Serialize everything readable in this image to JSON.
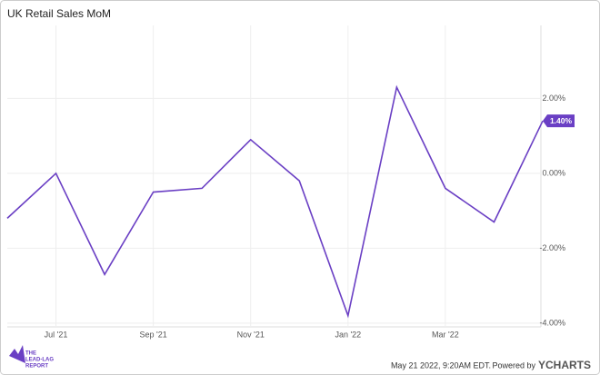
{
  "chart_data": {
    "type": "line",
    "title": "UK Retail Sales MoM",
    "categories": [
      null,
      "Jul '21",
      null,
      "Sep '21",
      null,
      "Nov '21",
      null,
      "Jan '22",
      null,
      "Mar '22",
      null,
      null
    ],
    "series": [
      {
        "name": "UK Retail Sales MoM",
        "color": "#6a3fc4",
        "values": [
          -1.2,
          0.0,
          -2.7,
          -0.5,
          -0.4,
          0.9,
          -0.2,
          -3.8,
          2.3,
          -0.4,
          -1.3,
          1.4
        ],
        "value_labels": [
          null,
          null,
          null,
          null,
          null,
          null,
          null,
          null,
          null,
          null,
          null,
          "1.40%"
        ]
      }
    ],
    "ylim": [
      -4.1,
      3.95
    ],
    "yticks": [
      {
        "value": -4,
        "label": "-4.00%"
      },
      {
        "value": -2,
        "label": "-2.00%"
      },
      {
        "value": 0,
        "label": "0.00%"
      },
      {
        "value": 2,
        "label": "2.00%"
      }
    ],
    "grid": true
  },
  "footer": {
    "timestamp": "May 21 2022, 9:20AM EDT.",
    "powered": "Powered by",
    "brand": "YCHARTS",
    "logo": [
      "THE",
      "LEAD-LAG",
      "REPORT"
    ]
  }
}
